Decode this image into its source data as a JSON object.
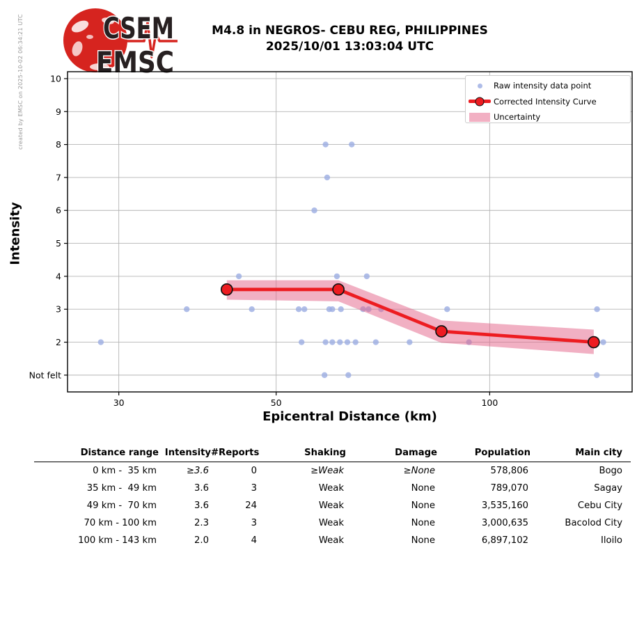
{
  "credit": "created by EMSC on 2025-10-02 06:34:21 UTC",
  "logo": {
    "top": "CSEM",
    "bottom": "EMSC"
  },
  "title": {
    "line1": "M4.8 in NEGROS- CEBU REG, PHILIPPINES",
    "line2": "2025/10/01 13:03:04 UTC"
  },
  "chart_data": {
    "type": "line",
    "xlabel": "Epicentral Distance (km)",
    "ylabel": "Intensity",
    "x_scale": "log",
    "x_range": [
      25.4,
      158.8
    ],
    "x_ticks": [
      30,
      50,
      100
    ],
    "x_tick_labels": [
      "30",
      "50",
      "100"
    ],
    "y_range": [
      0.49,
      10.21
    ],
    "y_values": [
      10,
      9,
      8,
      7,
      6,
      5,
      4,
      3,
      2,
      1
    ],
    "y_tick_labels": [
      "10",
      "9",
      "8",
      "7",
      "6",
      "5",
      "4",
      "3",
      "2",
      "Not felt"
    ],
    "not_felt_value": 1,
    "grid": true,
    "legend_position": "upper right",
    "legend": [
      "Raw intensity data point",
      "Corrected Intensity Curve",
      "Uncertainty"
    ],
    "raw_points": [
      [
        58.7,
        8
      ],
      [
        63.9,
        8
      ],
      [
        59.0,
        7
      ],
      [
        56.6,
        6
      ],
      [
        44.3,
        4
      ],
      [
        60.9,
        4
      ],
      [
        67.1,
        4
      ],
      [
        37.4,
        3
      ],
      [
        46.2,
        3
      ],
      [
        53.8,
        3
      ],
      [
        54.8,
        3
      ],
      [
        59.4,
        3
      ],
      [
        60.0,
        3
      ],
      [
        61.7,
        3
      ],
      [
        66.3,
        3
      ],
      [
        67.5,
        3
      ],
      [
        70.3,
        3
      ],
      [
        87.1,
        3
      ],
      [
        141.7,
        3
      ],
      [
        28.3,
        2
      ],
      [
        54.3,
        2
      ],
      [
        58.7,
        2
      ],
      [
        60.0,
        2
      ],
      [
        61.5,
        2
      ],
      [
        63.0,
        2
      ],
      [
        64.7,
        2
      ],
      [
        69.1,
        2
      ],
      [
        77.1,
        2
      ],
      [
        93.5,
        2
      ],
      [
        144.6,
        2
      ],
      [
        58.5,
        1
      ],
      [
        63.2,
        1
      ],
      [
        141.6,
        1
      ]
    ],
    "curve": {
      "d": [
        42.6,
        61.2,
        85.5,
        140.2
      ],
      "i": [
        3.6,
        3.6,
        2.33,
        2.0
      ]
    },
    "uncertainty": {
      "upper": [
        3.88,
        3.88,
        2.66,
        2.38
      ],
      "lower": [
        3.29,
        3.24,
        1.98,
        1.64
      ]
    },
    "colors": {
      "raw_point": "#9bade2",
      "curve": "#ed1c21",
      "uncertainty": "#e46187",
      "grid": "#b4b4b4",
      "frame": "#000000",
      "credit_text": "#999999",
      "logo_red": "#d6241f",
      "logo_dark": "#272021"
    }
  },
  "table": {
    "headers": [
      "Distance range",
      "Intensity",
      "#Reports",
      "Shaking",
      "Damage",
      "Population",
      "Main city"
    ],
    "rows": [
      [
        "0 km -  35 km",
        "≥3.6",
        "0",
        "≥Weak",
        "≥None",
        "578,806",
        "Bogo"
      ],
      [
        "35 km -  49 km",
        "3.6",
        "3",
        "Weak",
        "None",
        "789,070",
        "Sagay"
      ],
      [
        "49 km -  70 km",
        "3.6",
        "24",
        "Weak",
        "None",
        "3,535,160",
        "Cebu City"
      ],
      [
        "70 km - 100 km",
        "2.3",
        "3",
        "Weak",
        "None",
        "3,000,635",
        "Bacolod City"
      ],
      [
        "100 km - 143 km",
        "2.0",
        "4",
        "Weak",
        "None",
        "6,897,102",
        "Iloilo"
      ]
    ]
  }
}
